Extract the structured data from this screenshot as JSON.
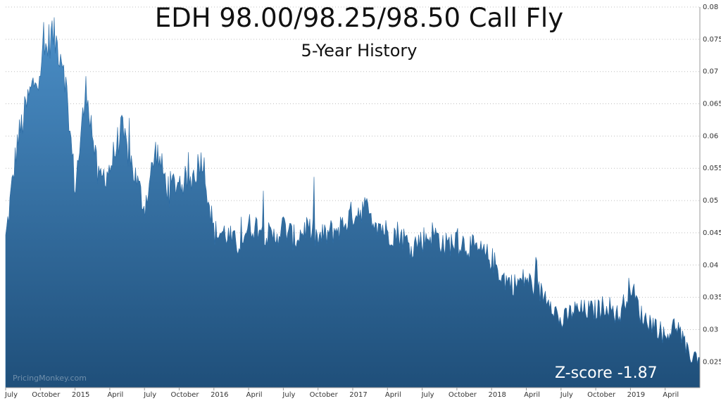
{
  "chart_data": {
    "type": "area",
    "title": "EDH 98.00/98.25/98.50 Call Fly",
    "subtitle": "5-Year History",
    "annotation": "Z-score -1.87",
    "watermark": "PricingMonkey.com",
    "fill_color_top": "#4b8fc8",
    "fill_color_bottom": "#1f4f7a",
    "grid": "horizontal dotted",
    "y_axis_position": "right",
    "ylim": [
      0.021,
      0.08
    ],
    "y_ticks": [
      "0.025",
      "0.03",
      "0.035",
      "0.04",
      "0.045",
      "0.05",
      "0.055",
      "0.06",
      "0.065",
      "0.07",
      "0.075",
      "0.08"
    ],
    "x_ticks": [
      "July",
      "October",
      "2015",
      "April",
      "July",
      "October",
      "2016",
      "April",
      "July",
      "October",
      "2017",
      "April",
      "July",
      "October",
      "2018",
      "April",
      "July",
      "October",
      "2019",
      "April"
    ],
    "x": [
      "2014-07",
      "2014-08",
      "2014-09",
      "2014-10",
      "2014-11",
      "2014-12",
      "2015-01",
      "2015-02",
      "2015-03",
      "2015-04",
      "2015-05",
      "2015-06",
      "2015-07",
      "2015-08",
      "2015-09",
      "2015-10",
      "2015-11",
      "2015-12",
      "2016-01",
      "2016-02",
      "2016-03",
      "2016-04",
      "2016-05",
      "2016-06",
      "2016-07",
      "2016-08",
      "2016-09",
      "2016-10",
      "2016-11",
      "2016-12",
      "2017-01",
      "2017-02",
      "2017-03",
      "2017-04",
      "2017-05",
      "2017-06",
      "2017-07",
      "2017-08",
      "2017-09",
      "2017-10",
      "2017-11",
      "2017-12",
      "2018-01",
      "2018-02",
      "2018-03",
      "2018-04",
      "2018-05",
      "2018-06",
      "2018-07",
      "2018-08",
      "2018-09",
      "2018-10",
      "2018-11",
      "2018-12",
      "2019-01",
      "2019-02",
      "2019-03",
      "2019-04",
      "2019-05",
      "2019-06"
    ],
    "values": [
      0.044,
      0.059,
      0.066,
      0.071,
      0.076,
      0.072,
      0.052,
      0.068,
      0.053,
      0.055,
      0.061,
      0.055,
      0.049,
      0.058,
      0.052,
      0.053,
      0.053,
      0.057,
      0.045,
      0.045,
      0.043,
      0.046,
      0.046,
      0.044,
      0.046,
      0.044,
      0.046,
      0.044,
      0.045,
      0.046,
      0.048,
      0.049,
      0.047,
      0.045,
      0.045,
      0.043,
      0.044,
      0.045,
      0.043,
      0.044,
      0.043,
      0.042,
      0.041,
      0.038,
      0.037,
      0.038,
      0.036,
      0.035,
      0.031,
      0.033,
      0.033,
      0.033,
      0.034,
      0.032,
      0.037,
      0.032,
      0.031,
      0.029,
      0.031,
      0.026
    ]
  }
}
